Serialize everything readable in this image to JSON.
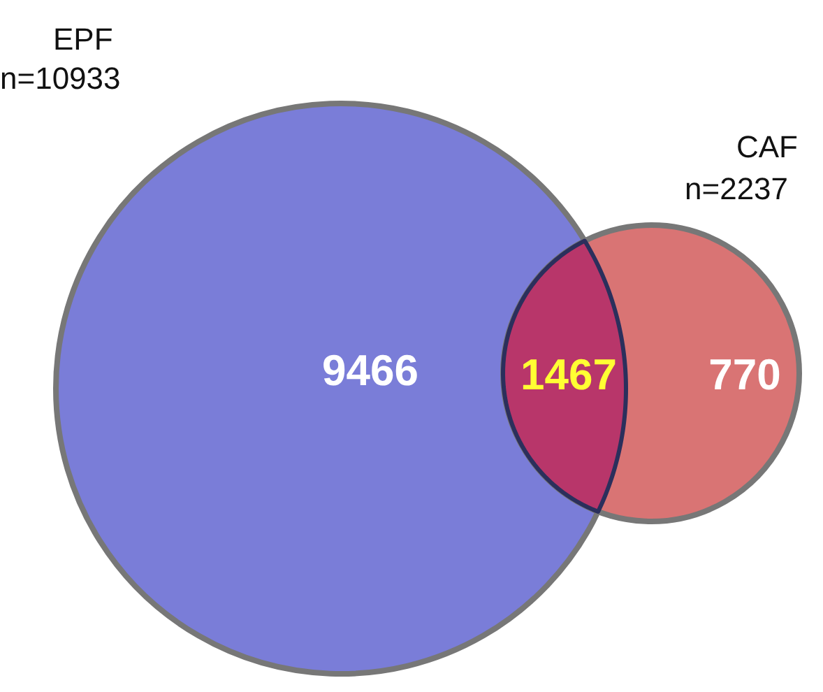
{
  "chart_data": {
    "type": "other",
    "categories": [
      "EPF",
      null,
      "CAF"
    ],
    "values": [
      9466,
      1467,
      770
    ],
    "colors": [
      "#7a7dd8",
      "#b8366a",
      "#d97474"
    ],
    "annotations": [
      "n=10933",
      "n=2237"
    ],
    "data_labels": true
  }
}
